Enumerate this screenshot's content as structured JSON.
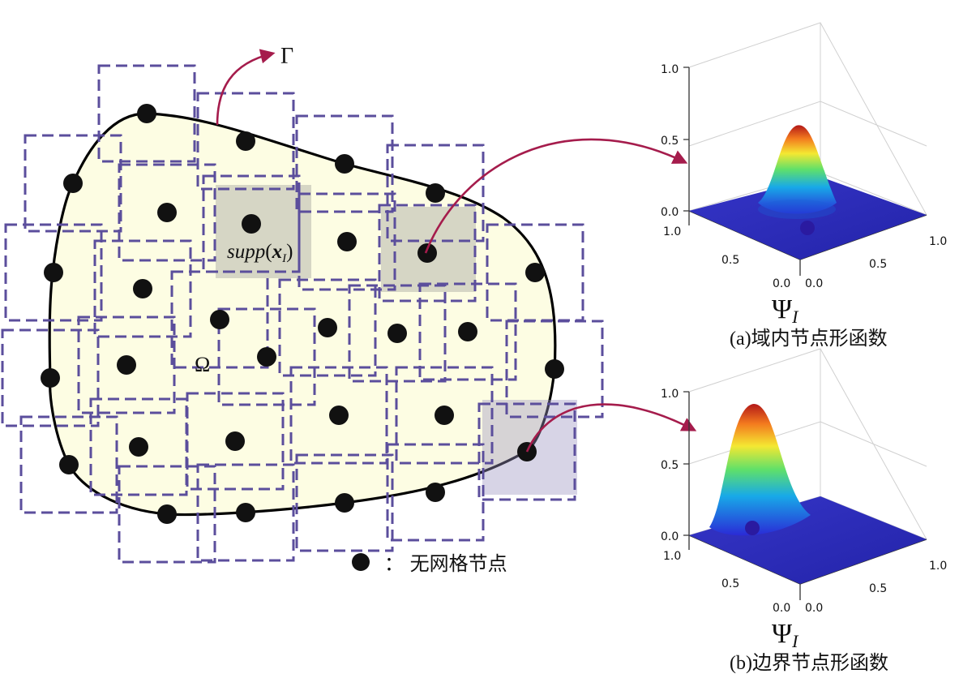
{
  "labels": {
    "gamma": "Γ",
    "omega": "Ω",
    "supp_func": "supp",
    "supp_open": "(",
    "supp_x": "x",
    "supp_sub": "I",
    "supp_close": ")"
  },
  "legend": {
    "text": "：  无网格节点"
  },
  "plot_a": {
    "z_ticks": [
      "0.0",
      "0.5",
      "1.0"
    ],
    "y_ticks": [
      "0.0",
      "0.5",
      "1.0"
    ],
    "x_ticks": [
      "0.0",
      "0.5",
      "1.0"
    ],
    "axis_label": "Ψ",
    "axis_sub": "I",
    "caption": "(a)域内节点形函数"
  },
  "plot_b": {
    "z_ticks": [
      "0.0",
      "0.5",
      "1.0"
    ],
    "y_ticks": [
      "0.0",
      "0.5",
      "1.0"
    ],
    "x_ticks": [
      "0.0",
      "0.5",
      "1.0"
    ],
    "axis_label": "Ψ",
    "axis_sub": "I",
    "caption": "(b)边界节点形函数"
  },
  "colors": {
    "domain_fill": "#fdfde3",
    "support_box_stroke": "#5b4e9c",
    "arrow": "#a51c4c",
    "node": "#111111"
  }
}
